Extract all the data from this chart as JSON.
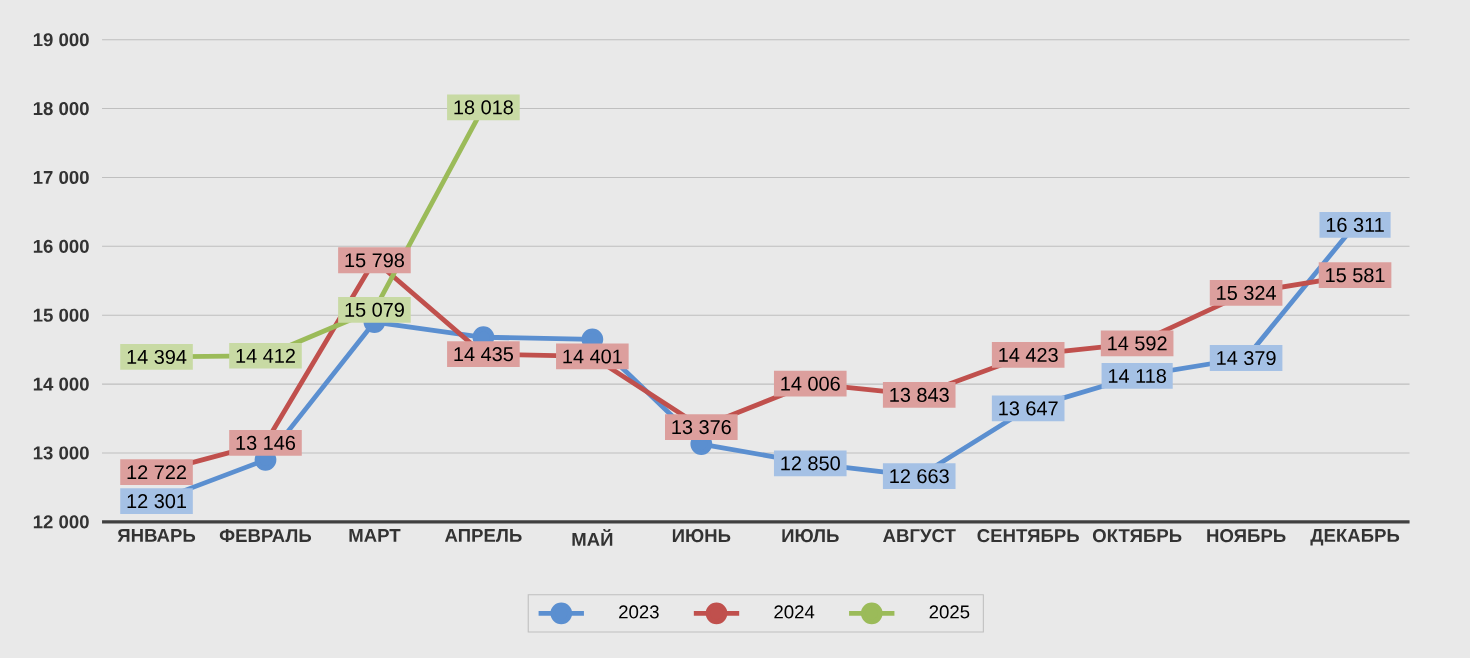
{
  "chart_data": {
    "type": "line",
    "categories": [
      "ЯНВАРЬ",
      "ФЕВРАЛЬ",
      "МАРТ",
      "АПРЕЛЬ",
      "МАЙ",
      "ИЮНЬ",
      "ИЮЛЬ",
      "АВГУСТ",
      "СЕНТЯБРЬ",
      "ОКТЯБРЬ",
      "НОЯБРЬ",
      "ДЕКАБРЬ"
    ],
    "series": [
      {
        "name": "2023",
        "color": "#5b8fd0",
        "values": [
          12301,
          12900,
          14900,
          14680,
          14650,
          13130,
          12850,
          12663,
          13647,
          14118,
          14379,
          16311
        ],
        "value_labels": [
          "12 301",
          null,
          null,
          null,
          null,
          null,
          "12 850",
          "12 663",
          "13 647",
          "14 118",
          "14 379",
          "16 311"
        ]
      },
      {
        "name": "2024",
        "color": "#c0504d",
        "values": [
          12722,
          13146,
          15798,
          14435,
          14401,
          13376,
          14006,
          13843,
          14423,
          14592,
          15324,
          15581
        ],
        "value_labels": [
          "12 722",
          "13 146",
          "15 798",
          "14 435",
          "14 401",
          "13 376",
          "14 006",
          "13 843",
          "14 423",
          "14 592",
          "15 324",
          "15 581"
        ]
      },
      {
        "name": "2025",
        "color": "#9bbb59",
        "values": [
          14394,
          14412,
          15079,
          18018,
          null,
          null,
          null,
          null,
          null,
          null,
          null,
          null
        ],
        "value_labels": [
          "14 394",
          "14 412",
          "15 079",
          "18 018",
          null,
          null,
          null,
          null,
          null,
          null,
          null,
          null
        ]
      }
    ],
    "ylim": [
      12000,
      19000
    ],
    "yticks": [
      {
        "value": 12000,
        "label": "12 000"
      },
      {
        "value": 13000,
        "label": "13 000"
      },
      {
        "value": 14000,
        "label": "14 000"
      },
      {
        "value": 15000,
        "label": "15 000"
      },
      {
        "value": 16000,
        "label": "16 000"
      },
      {
        "value": 17000,
        "label": "17 000"
      },
      {
        "value": 18000,
        "label": "18 000"
      },
      {
        "value": 19000,
        "label": "19 000"
      }
    ],
    "grid": "y",
    "legend": "bottom",
    "marker": "circle",
    "line_style": "solid"
  }
}
